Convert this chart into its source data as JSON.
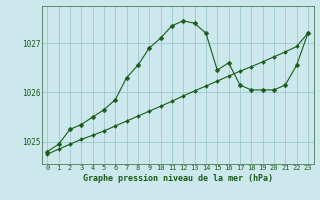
{
  "title": "Graphe pression niveau de la mer (hPa)",
  "bg_color": "#cce8ec",
  "line_color": "#1a5c1a",
  "grid_color": "#90c4c8",
  "x_ticks": [
    0,
    1,
    2,
    3,
    4,
    5,
    6,
    7,
    8,
    9,
    10,
    11,
    12,
    13,
    14,
    15,
    16,
    17,
    18,
    19,
    20,
    21,
    22,
    23
  ],
  "y_ticks": [
    1025,
    1026,
    1027
  ],
  "ylim": [
    1024.55,
    1027.75
  ],
  "xlim": [
    -0.5,
    23.5
  ],
  "series1_x": [
    0,
    1,
    2,
    3,
    4,
    5,
    6,
    7,
    8,
    9,
    10,
    11,
    12,
    13,
    14,
    15,
    16,
    17,
    18,
    19,
    20,
    21,
    22,
    23
  ],
  "series1_y": [
    1024.8,
    1024.95,
    1025.25,
    1025.35,
    1025.5,
    1025.65,
    1025.85,
    1026.3,
    1026.55,
    1026.9,
    1027.1,
    1027.35,
    1027.45,
    1027.4,
    1027.2,
    1026.45,
    1026.6,
    1026.15,
    1026.05,
    1026.05,
    1026.05,
    1026.15,
    1026.55,
    1027.2
  ],
  "series2_x": [
    0,
    1,
    2,
    3,
    4,
    5,
    6,
    7,
    8,
    9,
    10,
    11,
    12,
    13,
    14,
    15,
    16,
    17,
    18,
    19,
    20,
    21,
    22,
    23
  ],
  "series2_y": [
    1024.75,
    1024.85,
    1024.95,
    1025.05,
    1025.13,
    1025.22,
    1025.32,
    1025.42,
    1025.52,
    1025.62,
    1025.72,
    1025.82,
    1025.93,
    1026.03,
    1026.13,
    1026.23,
    1026.33,
    1026.43,
    1026.52,
    1026.62,
    1026.72,
    1026.82,
    1026.93,
    1027.2
  ],
  "tick_fontsize": 5,
  "label_fontsize": 6,
  "marker_size": 2.5,
  "linewidth": 0.8
}
